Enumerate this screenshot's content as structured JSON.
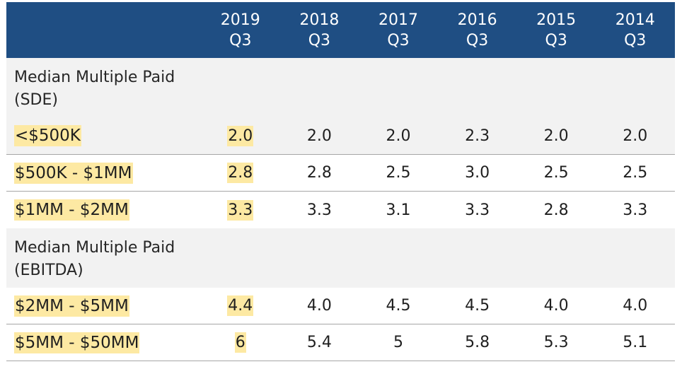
{
  "header": {
    "columns": [
      {
        "year": "2019",
        "quarter": "Q3"
      },
      {
        "year": "2018",
        "quarter": "Q3"
      },
      {
        "year": "2017",
        "quarter": "Q3"
      },
      {
        "year": "2016",
        "quarter": "Q3"
      },
      {
        "year": "2015",
        "quarter": "Q3"
      },
      {
        "year": "2014",
        "quarter": "Q3"
      }
    ]
  },
  "sections": [
    {
      "title_line1": "Median Multiple Paid",
      "title_line2": "(SDE)",
      "rows": [
        {
          "label": "<$500K",
          "values": [
            "2.0",
            "2.0",
            "2.0",
            "2.3",
            "2.0",
            "2.0"
          ]
        },
        {
          "label": "$500K - $1MM",
          "values": [
            "2.8",
            "2.8",
            "2.5",
            "3.0",
            "2.5",
            "2.5"
          ]
        },
        {
          "label": "$1MM - $2MM",
          "values": [
            "3.3",
            "3.3",
            "3.1",
            "3.3",
            "2.8",
            "3.3"
          ]
        }
      ]
    },
    {
      "title_line1": "Median Multiple Paid",
      "title_line2": "(EBITDA)",
      "rows": [
        {
          "label": "$2MM - $5MM",
          "values": [
            "4.4",
            "4.0",
            "4.5",
            "4.5",
            "4.0",
            "4.0"
          ]
        },
        {
          "label": "$5MM - $50MM",
          "values": [
            "6",
            "5.4",
            "5",
            "5.8",
            "5.3",
            "5.1"
          ]
        }
      ]
    }
  ],
  "colors": {
    "header_bg": "#1f4e83",
    "highlight": "#fde9a3",
    "section_bg": "#f2f2f2"
  }
}
